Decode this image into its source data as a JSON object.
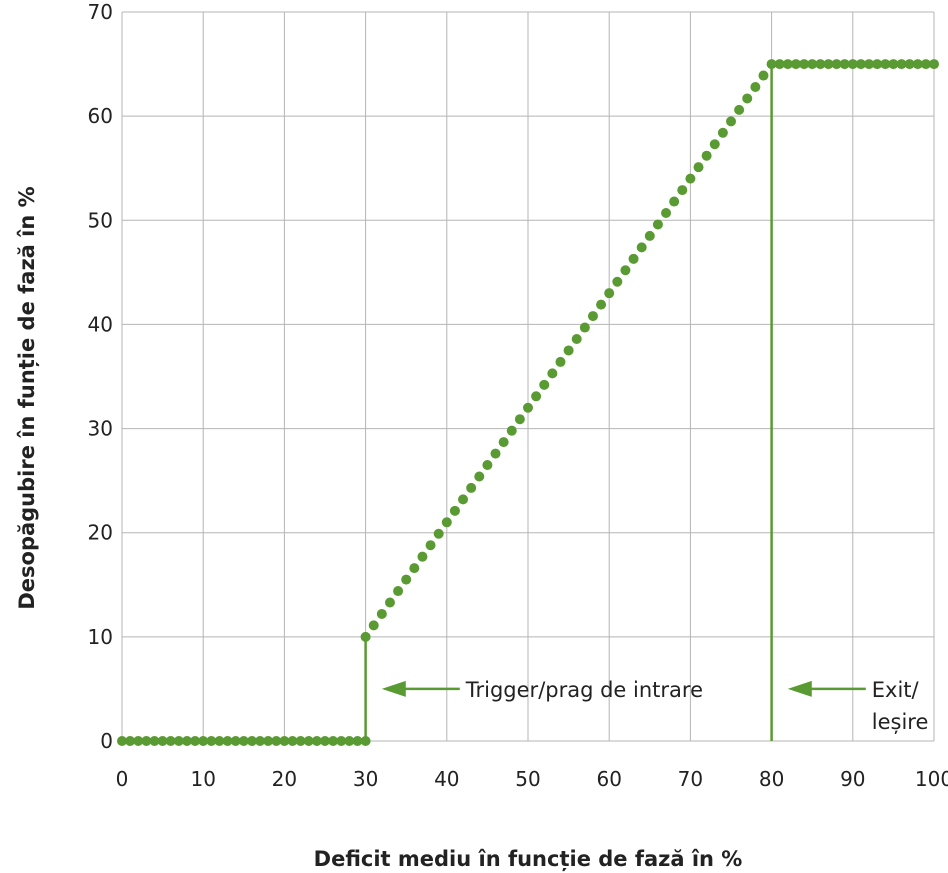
{
  "chart_data": {
    "type": "scatter",
    "xlabel": "Deficit mediu în funcție de fază în %",
    "ylabel": "Desopăgubire în funție de fază în %",
    "xlim": [
      0,
      100
    ],
    "ylim": [
      0,
      70
    ],
    "x_ticks": [
      "0",
      "10",
      "20",
      "30",
      "40",
      "50",
      "60",
      "70",
      "80",
      "90",
      "100"
    ],
    "y_ticks": [
      "0",
      "10",
      "20",
      "30",
      "40",
      "50",
      "60",
      "70"
    ],
    "grid": true,
    "colors": {
      "series": "#5a9a33",
      "grid": "#b5b5b5",
      "text": "#222222"
    },
    "segments": [
      {
        "x_start": 0,
        "x_end": 30,
        "step": 1,
        "y": 0
      },
      {
        "x_start": 30,
        "x_end": 79,
        "step": 1,
        "y_start": 10,
        "y_slope": 1.1
      },
      {
        "x_start": 80,
        "x_end": 100,
        "step": 1,
        "y": 65
      }
    ],
    "vertical_lines": [
      {
        "x": 30,
        "y_from": 0,
        "y_to": 10
      },
      {
        "x": 80,
        "y_from": 0,
        "y_to": 65
      }
    ],
    "annotations": [
      {
        "lines": [
          "Trigger/prag de intrare"
        ],
        "x": 31.5,
        "y": 5
      },
      {
        "lines": [
          "Exit/",
          "leșire"
        ],
        "x": 81.5,
        "y": 5
      }
    ]
  }
}
